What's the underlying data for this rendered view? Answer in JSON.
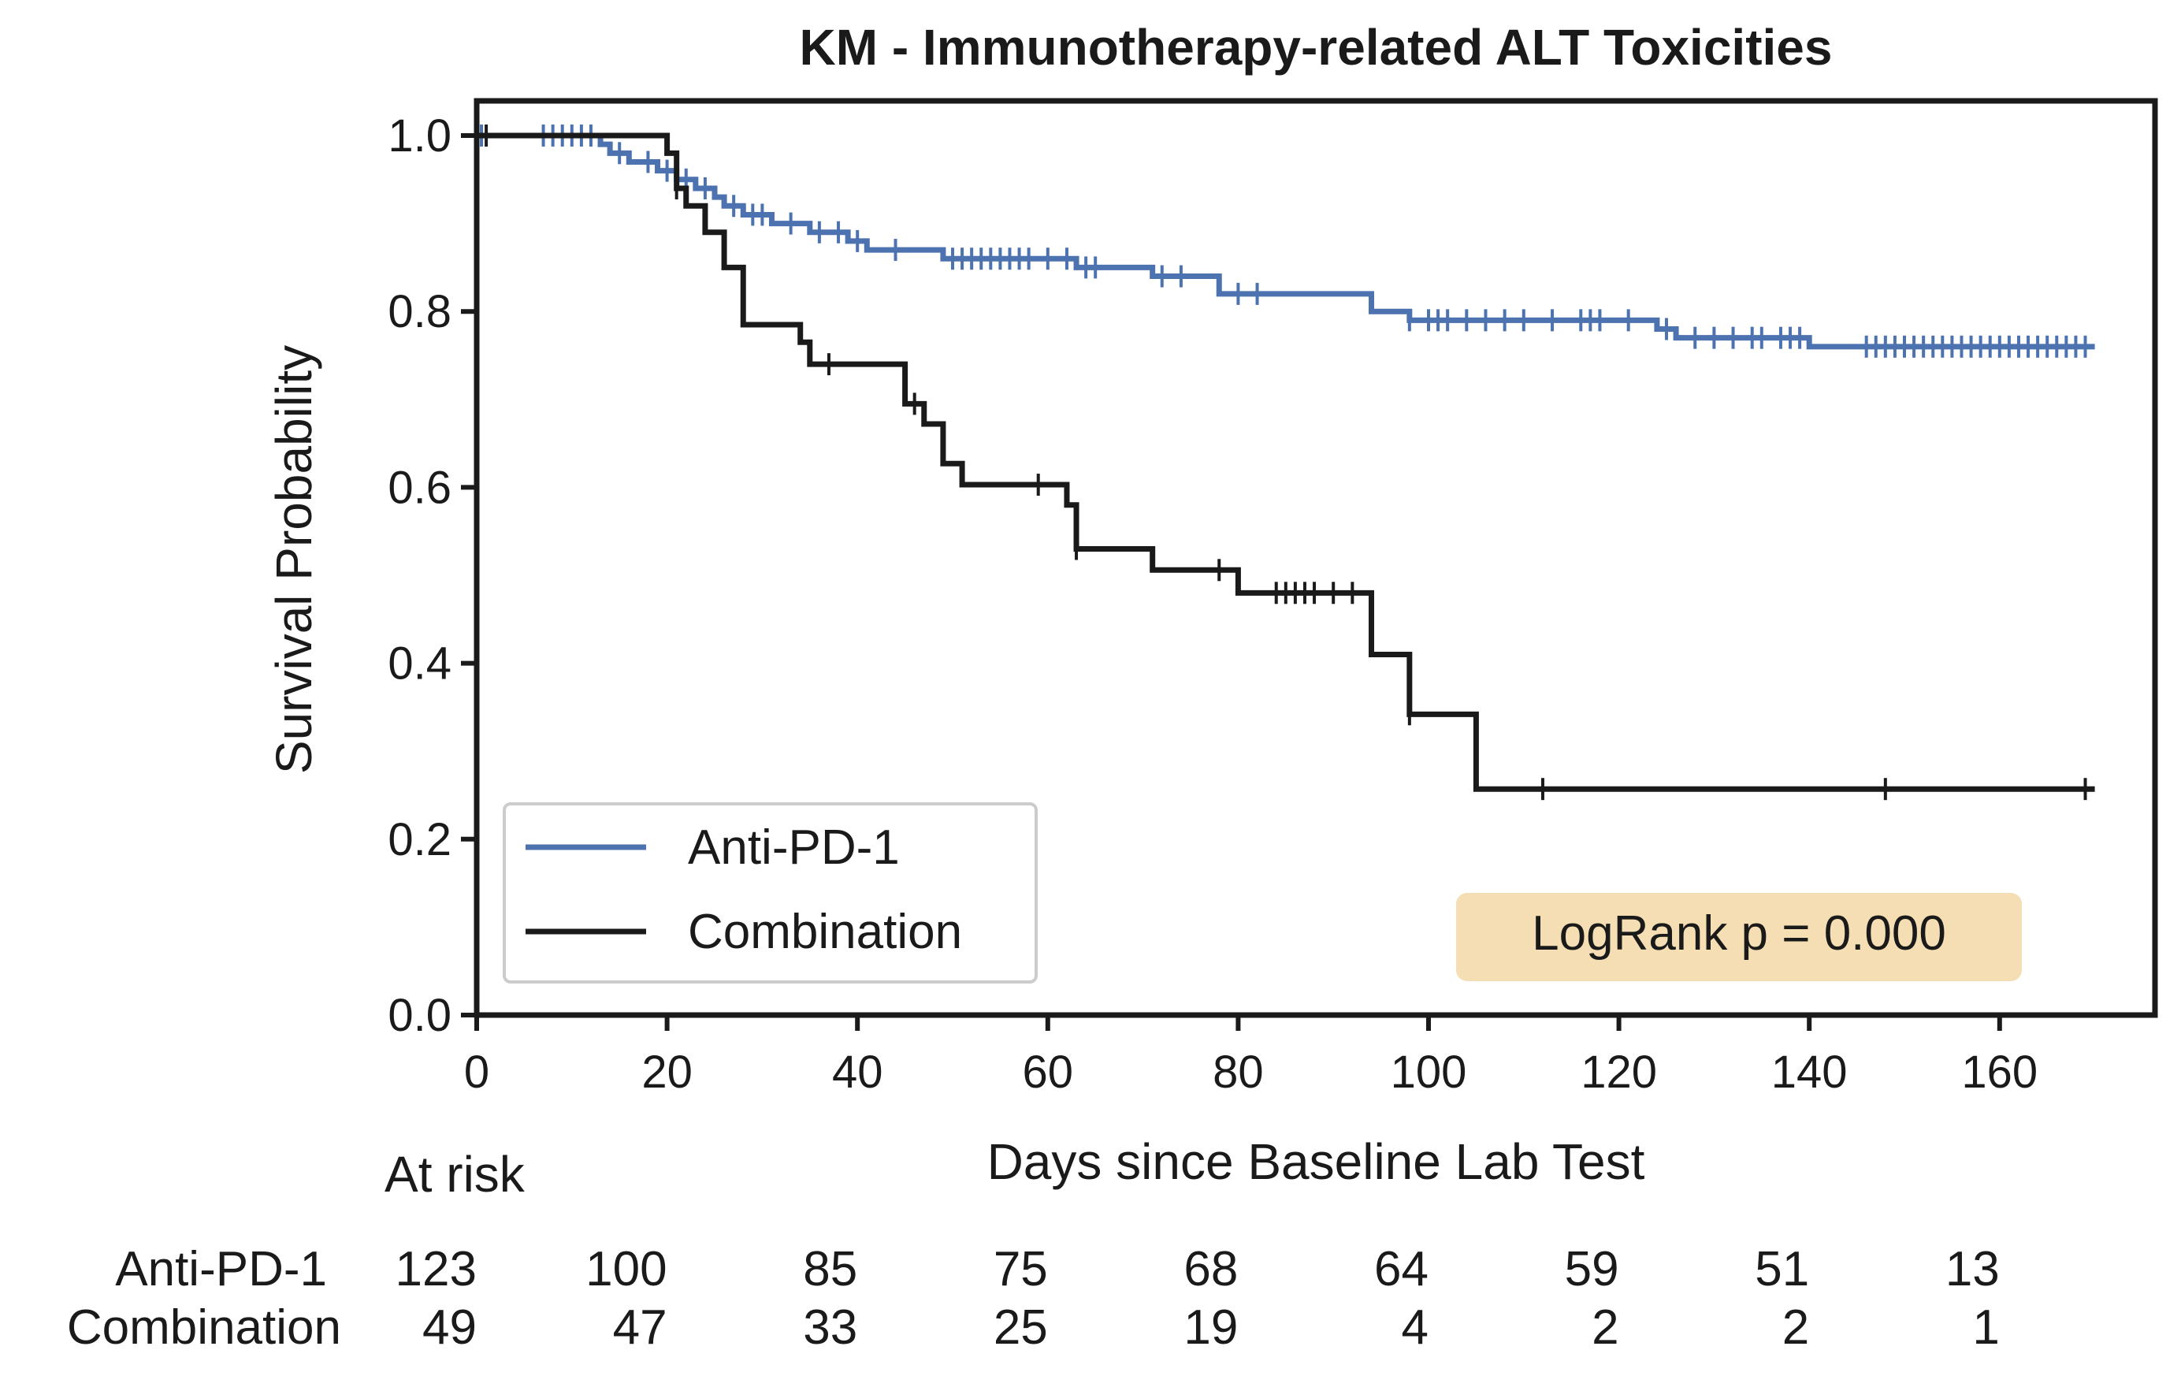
{
  "colors": {
    "anti_pd1": "#4c72b0",
    "combination": "#1a1a1a",
    "annotation_bg": "#f5deb3",
    "axis": "#1a1a1a"
  },
  "chart_data": {
    "type": "line",
    "subtype": "kaplan-meier",
    "title": "KM - Immunotherapy-related ALT Toxicities",
    "xlabel": "Days since Baseline Lab Test",
    "ylabel": "Survival Probability",
    "xlim": [
      0,
      172
    ],
    "ylim": [
      0.0,
      1.04
    ],
    "xticks": [
      0,
      20,
      40,
      60,
      80,
      100,
      120,
      140,
      160
    ],
    "yticks": [
      "0.0",
      "0.2",
      "0.4",
      "0.6",
      "0.8",
      "1.0"
    ],
    "grid": false,
    "legend": {
      "placement": "bottom-left",
      "entries": [
        "Anti-PD-1",
        "Combination"
      ]
    },
    "annotation": "LogRank p = 0.000",
    "series": [
      {
        "name": "Anti-PD-1",
        "color_key": "anti_pd1",
        "steps": [
          [
            0,
            1.0
          ],
          [
            13,
            0.99
          ],
          [
            14,
            0.98
          ],
          [
            16,
            0.97
          ],
          [
            19,
            0.96
          ],
          [
            21,
            0.95
          ],
          [
            23,
            0.94
          ],
          [
            25,
            0.93
          ],
          [
            26,
            0.92
          ],
          [
            28,
            0.91
          ],
          [
            31,
            0.9
          ],
          [
            35,
            0.89
          ],
          [
            39,
            0.88
          ],
          [
            41,
            0.87
          ],
          [
            49,
            0.86
          ],
          [
            63,
            0.85
          ],
          [
            71,
            0.84
          ],
          [
            78,
            0.82
          ],
          [
            94,
            0.8
          ],
          [
            98,
            0.79
          ],
          [
            124,
            0.78
          ],
          [
            126,
            0.77
          ],
          [
            140,
            0.76
          ],
          [
            170,
            0.76
          ]
        ],
        "censored": [
          0.5,
          7,
          8,
          9,
          10,
          11,
          12,
          15,
          18,
          20,
          22,
          24,
          27,
          29,
          30,
          33,
          36,
          38,
          40,
          44,
          50,
          51,
          52,
          53,
          54,
          55,
          56,
          57,
          58,
          60,
          62,
          64,
          65,
          72,
          74,
          80,
          82,
          98,
          100,
          101,
          102,
          104,
          106,
          108,
          110,
          113,
          116,
          117,
          118,
          121,
          125,
          128,
          130,
          132,
          134,
          135,
          137,
          138,
          139,
          146,
          147,
          148,
          149,
          150,
          151,
          152,
          153,
          154,
          155,
          156,
          157,
          158,
          159,
          160,
          161,
          162,
          163,
          164,
          165,
          166,
          167,
          168,
          169
        ]
      },
      {
        "name": "Combination",
        "color_key": "combination",
        "steps": [
          [
            0,
            1.0
          ],
          [
            20,
            0.98
          ],
          [
            21,
            0.94
          ],
          [
            22,
            0.92
          ],
          [
            24,
            0.89
          ],
          [
            26,
            0.85
          ],
          [
            28,
            0.785
          ],
          [
            34,
            0.765
          ],
          [
            35,
            0.74
          ],
          [
            45,
            0.695
          ],
          [
            47,
            0.672
          ],
          [
            49,
            0.627
          ],
          [
            51,
            0.603
          ],
          [
            62,
            0.58
          ],
          [
            63,
            0.53
          ],
          [
            71,
            0.506
          ],
          [
            80,
            0.48
          ],
          [
            94,
            0.41
          ],
          [
            98,
            0.342
          ],
          [
            105,
            0.257
          ],
          [
            170,
            0.257
          ]
        ],
        "censored": [
          1,
          21,
          37,
          46,
          59,
          63,
          78,
          84,
          85,
          86,
          87,
          88,
          90,
          92,
          98,
          112,
          148,
          169
        ]
      }
    ],
    "at_risk": {
      "header": "At risk",
      "ticks": [
        0,
        20,
        40,
        60,
        80,
        100,
        120,
        140,
        160
      ],
      "rows": [
        {
          "label": "Anti-PD-1",
          "counts": [
            "123",
            "100",
            "85",
            "75",
            "68",
            "64",
            "59",
            "51",
            "13"
          ]
        },
        {
          "label": "Combination",
          "counts": [
            "49",
            "47",
            "33",
            "25",
            "19",
            "4",
            "2",
            "2",
            "1"
          ]
        }
      ]
    }
  }
}
